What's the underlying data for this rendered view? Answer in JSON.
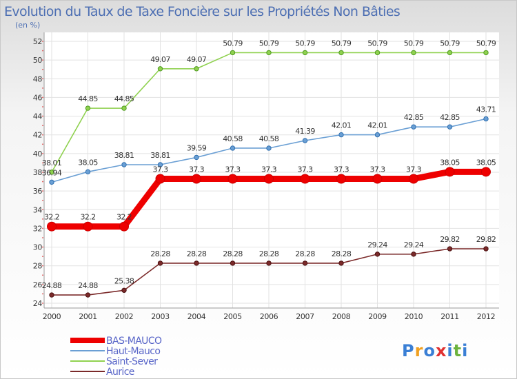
{
  "chart_data": {
    "type": "line",
    "title": "Evolution du Taux de Taxe Foncière sur les Propriétés Non Bâties",
    "subtitle": "(en %)",
    "x": [
      "2000",
      "2001",
      "2002",
      "2003",
      "2004",
      "2005",
      "2006",
      "2007",
      "2008",
      "2009",
      "2010",
      "2011",
      "2012"
    ],
    "ylim": [
      24,
      52
    ],
    "yticks": [
      24,
      26,
      28,
      30,
      32,
      34,
      36,
      38,
      40,
      42,
      44,
      46,
      48,
      50,
      52
    ],
    "grid": true,
    "legend_position": "bottom-left",
    "series": [
      {
        "name": "BAS-MAUCO",
        "color": "#ee0000",
        "values": [
          32.2,
          32.2,
          32.2,
          37.3,
          37.3,
          37.3,
          37.3,
          37.3,
          37.3,
          37.3,
          37.3,
          38.05,
          38.05
        ],
        "labels": [
          "32.2",
          "32.2",
          "32.2",
          "37.3",
          "37.3",
          "37.3",
          "37.3",
          "37.3",
          "37.3",
          "37.3",
          "37.3",
          "38.05",
          "38.05"
        ]
      },
      {
        "name": "Haut-Mauco",
        "color": "#6a9fd4",
        "values": [
          36.94,
          38.05,
          38.81,
          38.81,
          39.59,
          40.58,
          40.58,
          41.39,
          42.01,
          42.01,
          42.85,
          42.85,
          43.71
        ],
        "labels": [
          "36.94",
          "38.05",
          "38.81",
          "38.81",
          "39.59",
          "40.58",
          "40.58",
          "41.39",
          "42.01",
          "42.01",
          "42.85",
          "42.85",
          "43.71"
        ]
      },
      {
        "name": "Saint-Sever",
        "color": "#8fd14f",
        "values": [
          38.01,
          44.85,
          44.85,
          49.07,
          49.07,
          50.79,
          50.79,
          50.79,
          50.79,
          50.79,
          50.79,
          50.79,
          50.79
        ],
        "labels": [
          "38.01",
          "44.85",
          "44.85",
          "49.07",
          "49.07",
          "50.79",
          "50.79",
          "50.79",
          "50.79",
          "50.79",
          "50.79",
          "50.79",
          "50.79"
        ]
      },
      {
        "name": "Aurice",
        "color": "#7b2a2a",
        "values": [
          24.88,
          24.88,
          25.38,
          28.28,
          28.28,
          28.28,
          28.28,
          28.28,
          28.28,
          29.24,
          29.24,
          29.82,
          29.82
        ],
        "labels": [
          "24.88",
          "24.88",
          "25.38",
          "28.28",
          "28.28",
          "28.28",
          "28.28",
          "28.28",
          "28.28",
          "29.24",
          "29.24",
          "29.82",
          "29.82"
        ]
      }
    ]
  },
  "brand": {
    "letters": [
      "P",
      "r",
      "o",
      "x",
      "i",
      "t",
      "i"
    ],
    "colors": [
      "#3a7fd5",
      "#f0a020",
      "#3a7fd5",
      "#e03030",
      "#3a7fd5",
      "#6cb33e",
      "#3a7fd5"
    ]
  }
}
